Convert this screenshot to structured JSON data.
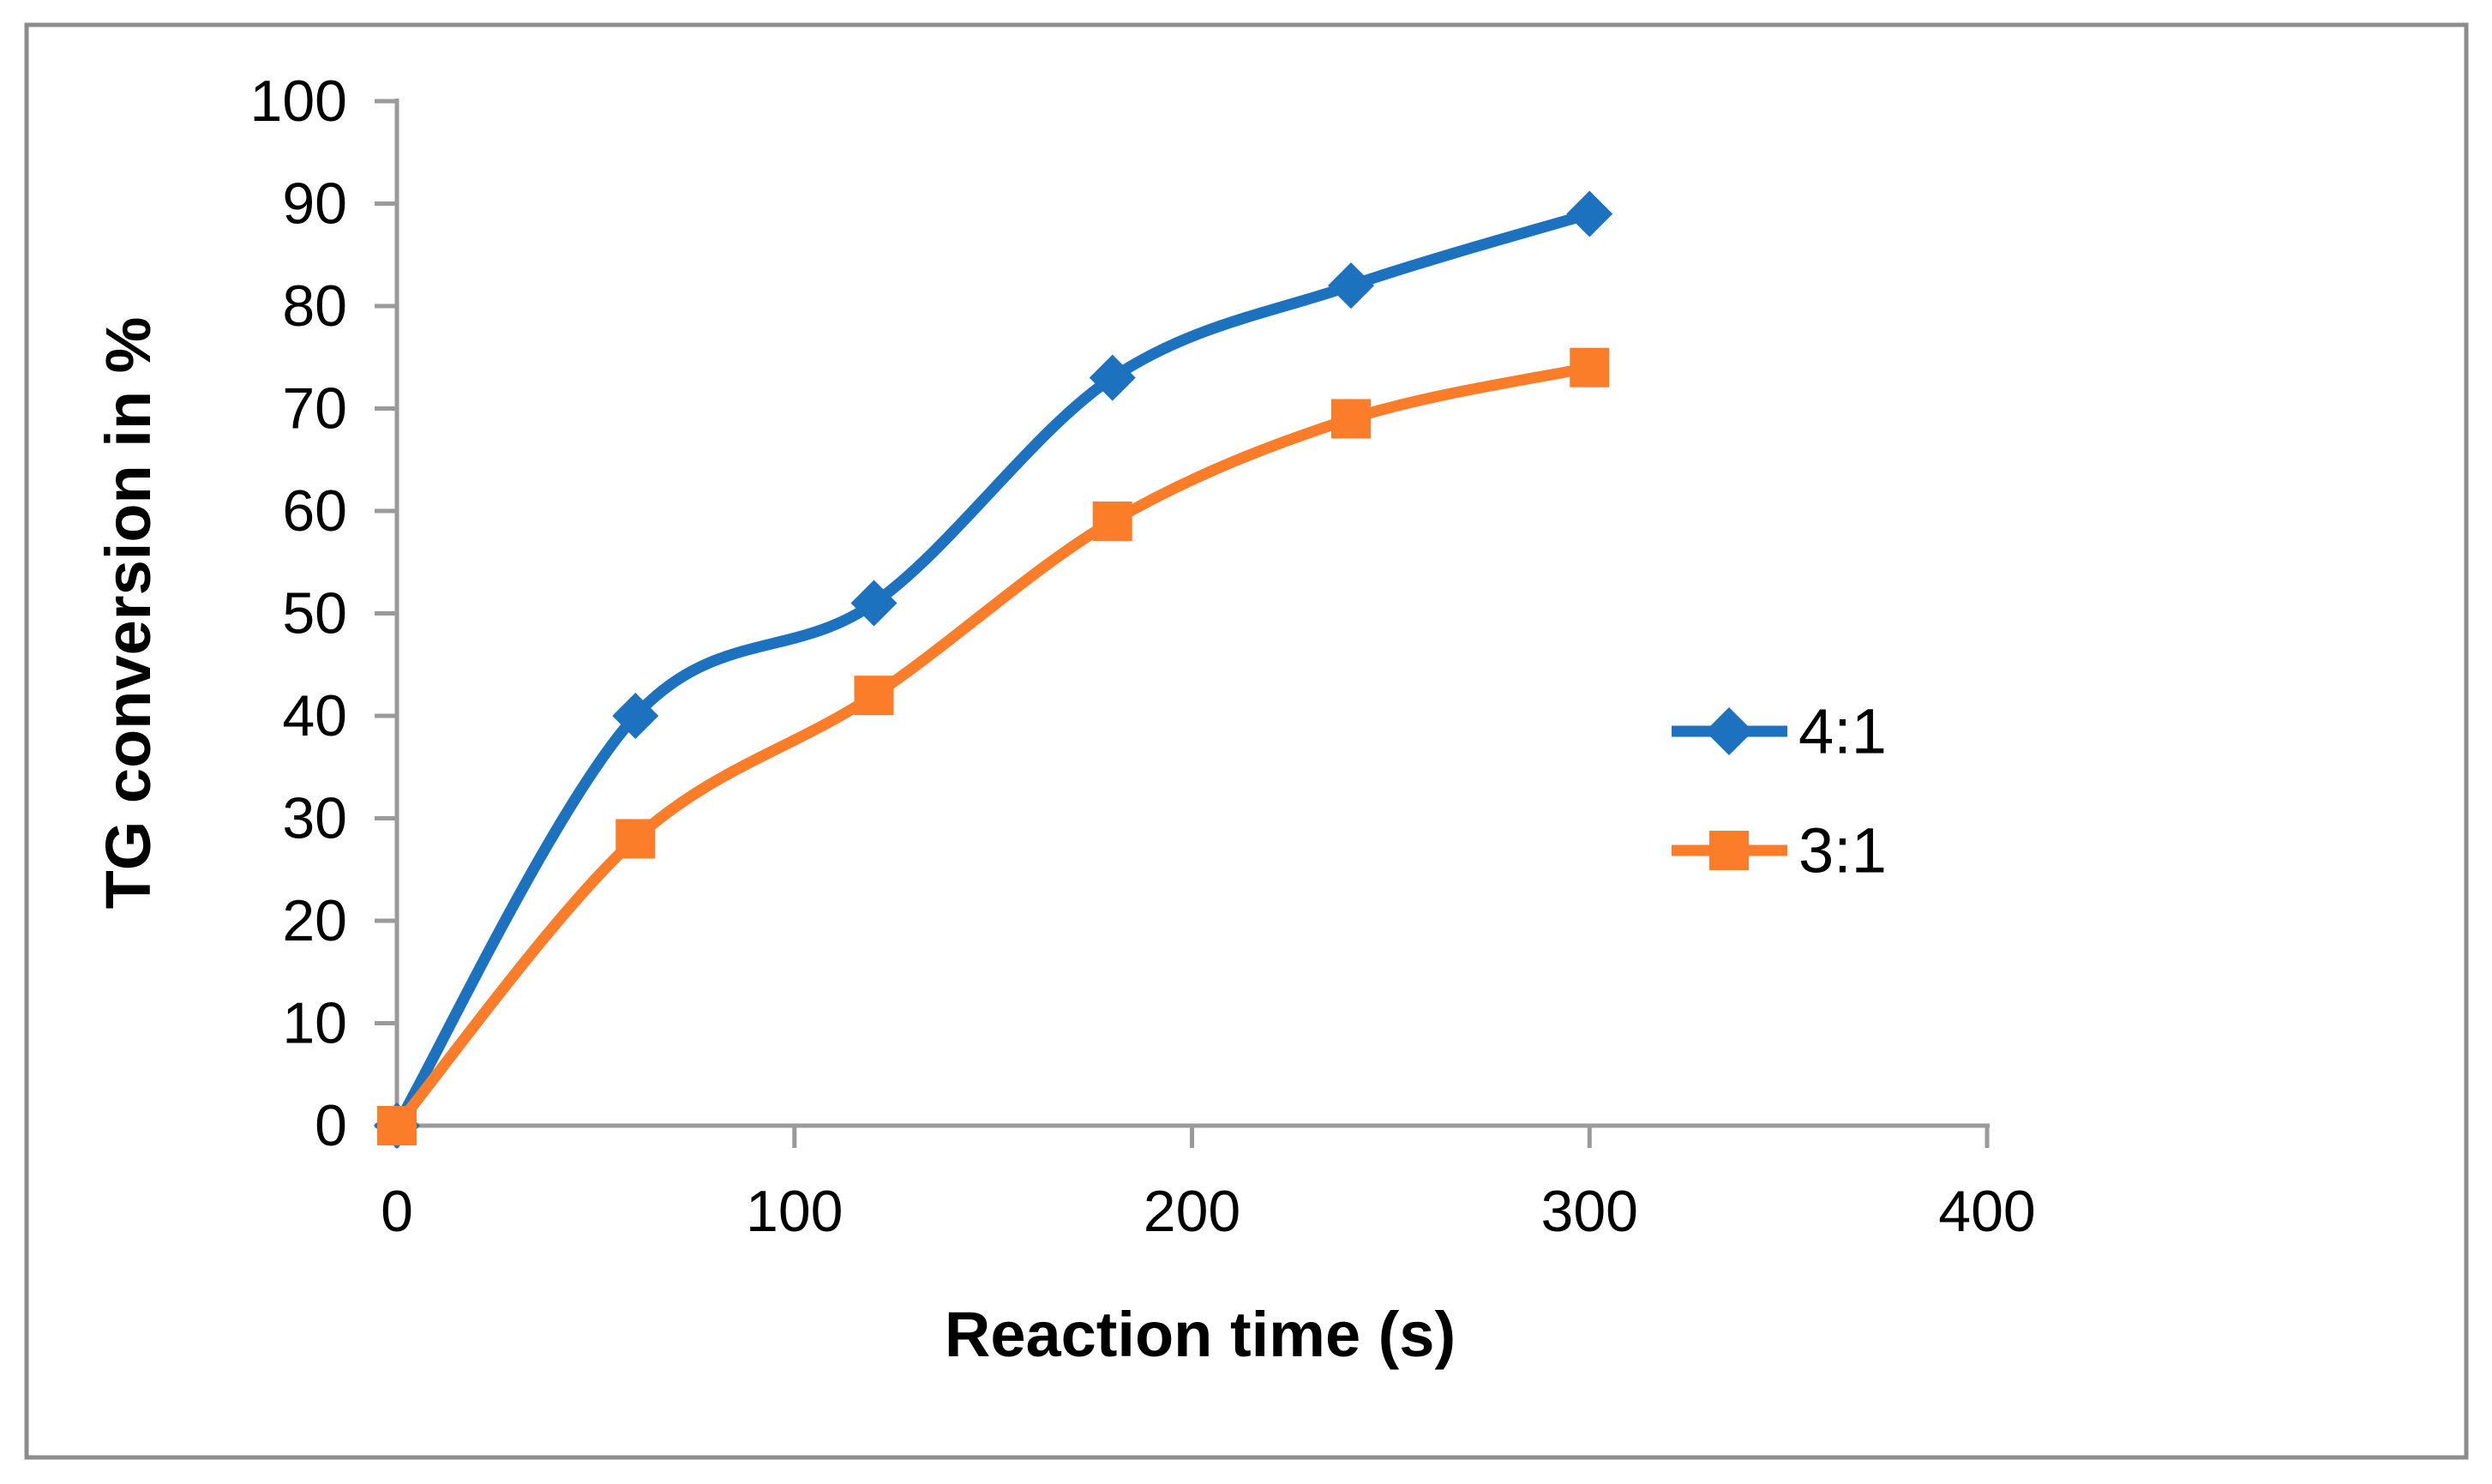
{
  "figure": {
    "background": "#FFFFFF",
    "border_color": "#8C8C8C"
  },
  "chart_data": {
    "type": "line",
    "title": "",
    "xlabel": "Reaction time (s)",
    "ylabel": "TG conversion in %",
    "x": [
      0,
      60,
      120,
      180,
      240,
      300
    ],
    "series": [
      {
        "name": "4:1",
        "marker": "diamond",
        "color": "#1C72BF",
        "values": [
          0,
          40,
          51,
          73,
          82,
          89
        ]
      },
      {
        "name": "3:1",
        "marker": "square",
        "color": "#FB7D2A",
        "values": [
          0,
          28,
          42,
          59,
          69,
          74
        ]
      }
    ],
    "xlim": [
      0,
      400
    ],
    "ylim": [
      0,
      100
    ],
    "x_ticks": [
      0,
      100,
      200,
      300,
      400
    ],
    "y_ticks": [
      0,
      10,
      20,
      30,
      40,
      50,
      60,
      70,
      80,
      90,
      100
    ],
    "grid": false,
    "smooth": true,
    "legend_position": "center-right",
    "axis_color": "#9A9A9A",
    "text_color": "#000000"
  }
}
